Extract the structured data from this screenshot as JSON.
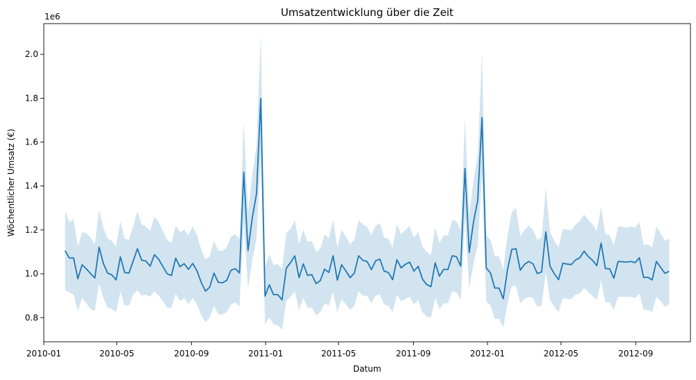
{
  "chart_data": {
    "type": "line",
    "title": "Umsatzentwicklung über die Zeit",
    "xlabel": "Datum",
    "ylabel": "Wöchentlicher Umsatz (€)",
    "y_offset_label": "1e6",
    "x_type": "date",
    "xlim": [
      "2010-01-01",
      "2012-11-30"
    ],
    "ylim": [
      0.69,
      2.14
    ],
    "y_ticks": [
      0.8,
      1.0,
      1.2,
      1.4,
      1.6,
      1.8,
      2.0
    ],
    "y_tick_labels": [
      "0.8",
      "1.0",
      "1.2",
      "1.4",
      "1.6",
      "1.8",
      "2.0"
    ],
    "x_ticks": [
      "2010-01-01",
      "2010-05-01",
      "2010-09-01",
      "2011-01-01",
      "2011-05-01",
      "2011-09-01",
      "2012-01-01",
      "2012-05-01",
      "2012-09-01"
    ],
    "x_tick_labels": [
      "2010-01",
      "2010-05",
      "2010-09",
      "2011-01",
      "2011-05",
      "2011-09",
      "2012-01",
      "2012-05",
      "2012-09"
    ],
    "grid": false,
    "legend": "none",
    "colors": {
      "line": "#1f77b4",
      "band": "#1f77b4",
      "axes": "#000000",
      "background": "#ffffff"
    },
    "band_opacity": 0.2,
    "x": [
      "2010-02-05",
      "2010-02-12",
      "2010-02-19",
      "2010-02-26",
      "2010-03-05",
      "2010-03-12",
      "2010-03-19",
      "2010-03-26",
      "2010-04-02",
      "2010-04-09",
      "2010-04-16",
      "2010-04-23",
      "2010-04-30",
      "2010-05-07",
      "2010-05-14",
      "2010-05-21",
      "2010-05-28",
      "2010-06-04",
      "2010-06-11",
      "2010-06-18",
      "2010-06-25",
      "2010-07-02",
      "2010-07-09",
      "2010-07-16",
      "2010-07-23",
      "2010-07-30",
      "2010-08-06",
      "2010-08-13",
      "2010-08-20",
      "2010-08-27",
      "2010-09-03",
      "2010-09-10",
      "2010-09-17",
      "2010-09-24",
      "2010-10-01",
      "2010-10-08",
      "2010-10-15",
      "2010-10-22",
      "2010-10-29",
      "2010-11-05",
      "2010-11-12",
      "2010-11-19",
      "2010-11-26",
      "2010-12-03",
      "2010-12-10",
      "2010-12-17",
      "2010-12-24",
      "2010-12-31",
      "2011-01-07",
      "2011-01-14",
      "2011-01-21",
      "2011-01-28",
      "2011-02-04",
      "2011-02-11",
      "2011-02-18",
      "2011-02-25",
      "2011-03-04",
      "2011-03-11",
      "2011-03-18",
      "2011-03-25",
      "2011-04-01",
      "2011-04-08",
      "2011-04-15",
      "2011-04-22",
      "2011-04-29",
      "2011-05-06",
      "2011-05-13",
      "2011-05-20",
      "2011-05-27",
      "2011-06-03",
      "2011-06-10",
      "2011-06-17",
      "2011-06-24",
      "2011-07-01",
      "2011-07-08",
      "2011-07-15",
      "2011-07-22",
      "2011-07-29",
      "2011-08-05",
      "2011-08-12",
      "2011-08-19",
      "2011-08-26",
      "2011-09-02",
      "2011-09-09",
      "2011-09-16",
      "2011-09-23",
      "2011-09-30",
      "2011-10-07",
      "2011-10-14",
      "2011-10-21",
      "2011-10-28",
      "2011-11-04",
      "2011-11-11",
      "2011-11-18",
      "2011-11-25",
      "2011-12-02",
      "2011-12-09",
      "2011-12-16",
      "2011-12-23",
      "2011-12-30",
      "2012-01-06",
      "2012-01-13",
      "2012-01-20",
      "2012-01-27",
      "2012-02-03",
      "2012-02-10",
      "2012-02-17",
      "2012-02-24",
      "2012-03-02",
      "2012-03-09",
      "2012-03-16",
      "2012-03-23",
      "2012-03-30",
      "2012-04-06",
      "2012-04-13",
      "2012-04-20",
      "2012-04-27",
      "2012-05-04",
      "2012-05-11",
      "2012-05-18",
      "2012-05-25",
      "2012-06-01",
      "2012-06-08",
      "2012-06-15",
      "2012-06-22",
      "2012-06-29",
      "2012-07-06",
      "2012-07-13",
      "2012-07-20",
      "2012-07-27",
      "2012-08-03",
      "2012-08-10",
      "2012-08-17",
      "2012-08-24",
      "2012-08-31",
      "2012-09-07",
      "2012-09-14",
      "2012-09-21",
      "2012-09-28",
      "2012-10-05",
      "2012-10-12",
      "2012-10-19",
      "2012-10-26"
    ],
    "series": [
      {
        "values": [
          1.105,
          1.072,
          1.072,
          0.977,
          1.041,
          1.022,
          1.001,
          0.981,
          1.121,
          1.047,
          1.003,
          0.995,
          0.972,
          1.077,
          1.006,
          1.003,
          1.057,
          1.114,
          1.062,
          1.058,
          1.034,
          1.087,
          1.066,
          1.033,
          1.0,
          0.992,
          1.071,
          1.032,
          1.046,
          1.02,
          1.047,
          1.014,
          0.961,
          0.921,
          0.939,
          1.003,
          0.961,
          0.959,
          0.97,
          1.016,
          1.023,
          1.004,
          1.463,
          1.106,
          1.253,
          1.366,
          1.799,
          0.898,
          0.95,
          0.905,
          0.905,
          0.881,
          1.025,
          1.051,
          1.082,
          0.982,
          1.045,
          0.993,
          0.996,
          0.955,
          0.969,
          1.021,
          1.006,
          1.082,
          0.971,
          1.041,
          1.013,
          0.982,
          1.003,
          1.082,
          1.061,
          1.056,
          1.019,
          1.059,
          1.067,
          1.012,
          1.006,
          0.973,
          1.064,
          1.027,
          1.043,
          1.053,
          1.012,
          1.034,
          0.976,
          0.951,
          0.941,
          1.05,
          0.989,
          1.02,
          1.02,
          1.082,
          1.078,
          1.035,
          1.48,
          1.097,
          1.235,
          1.335,
          1.712,
          1.026,
          1.004,
          0.935,
          0.935,
          0.886,
          1.019,
          1.111,
          1.114,
          1.016,
          1.043,
          1.056,
          1.045,
          1.001,
          1.008,
          1.191,
          1.034,
          1.0,
          0.973,
          1.048,
          1.044,
          1.042,
          1.063,
          1.073,
          1.103,
          1.078,
          1.061,
          1.037,
          1.14,
          1.024,
          1.023,
          0.98,
          1.056,
          1.055,
          1.053,
          1.056,
          1.051,
          1.073,
          0.983,
          0.984,
          0.972,
          1.056,
          1.029,
          1.002,
          1.011
        ],
        "lower": [
          0.925,
          0.915,
          0.905,
          0.83,
          0.89,
          0.865,
          0.84,
          0.83,
          0.955,
          0.89,
          0.845,
          0.84,
          0.825,
          0.92,
          0.855,
          0.855,
          0.905,
          0.925,
          0.9,
          0.905,
          0.895,
          0.92,
          0.9,
          0.875,
          0.845,
          0.845,
          0.91,
          0.875,
          0.89,
          0.86,
          0.89,
          0.86,
          0.81,
          0.78,
          0.8,
          0.855,
          0.815,
          0.815,
          0.825,
          0.86,
          0.87,
          0.85,
          1.24,
          0.93,
          1.06,
          1.16,
          1.53,
          0.77,
          0.8,
          0.77,
          0.765,
          0.745,
          0.875,
          0.895,
          0.92,
          0.835,
          0.89,
          0.845,
          0.845,
          0.81,
          0.825,
          0.865,
          0.855,
          0.92,
          0.825,
          0.885,
          0.86,
          0.835,
          0.855,
          0.92,
          0.9,
          0.9,
          0.865,
          0.9,
          0.905,
          0.86,
          0.855,
          0.825,
          0.905,
          0.875,
          0.885,
          0.895,
          0.86,
          0.88,
          0.825,
          0.805,
          0.8,
          0.89,
          0.84,
          0.865,
          0.865,
          0.92,
          0.915,
          0.88,
          1.255,
          0.93,
          1.045,
          1.13,
          1.45,
          0.875,
          0.855,
          0.795,
          0.795,
          0.755,
          0.865,
          0.945,
          0.945,
          0.865,
          0.885,
          0.895,
          0.89,
          0.85,
          0.855,
          1.01,
          0.88,
          0.85,
          0.825,
          0.89,
          0.885,
          0.885,
          0.905,
          0.91,
          0.935,
          0.915,
          0.9,
          0.88,
          0.97,
          0.87,
          0.87,
          0.835,
          0.895,
          0.895,
          0.895,
          0.895,
          0.89,
          0.91,
          0.835,
          0.835,
          0.825,
          0.895,
          0.875,
          0.85,
          0.86
        ],
        "upper": [
          1.285,
          1.235,
          1.25,
          1.125,
          1.19,
          1.185,
          1.165,
          1.135,
          1.29,
          1.21,
          1.16,
          1.15,
          1.125,
          1.24,
          1.16,
          1.155,
          1.215,
          1.285,
          1.225,
          1.215,
          1.195,
          1.26,
          1.235,
          1.195,
          1.155,
          1.14,
          1.22,
          1.19,
          1.2,
          1.175,
          1.215,
          1.175,
          1.11,
          1.065,
          1.08,
          1.15,
          1.105,
          1.105,
          1.12,
          1.17,
          1.18,
          1.16,
          1.695,
          1.28,
          1.45,
          1.58,
          2.09,
          1.03,
          1.09,
          1.04,
          1.045,
          1.02,
          1.185,
          1.205,
          1.245,
          1.135,
          1.2,
          1.145,
          1.15,
          1.1,
          1.115,
          1.18,
          1.16,
          1.245,
          1.12,
          1.2,
          1.17,
          1.135,
          1.155,
          1.245,
          1.225,
          1.215,
          1.175,
          1.22,
          1.23,
          1.165,
          1.16,
          1.12,
          1.225,
          1.18,
          1.2,
          1.215,
          1.165,
          1.19,
          1.125,
          1.1,
          1.085,
          1.21,
          1.14,
          1.175,
          1.175,
          1.245,
          1.24,
          1.195,
          1.71,
          1.265,
          1.425,
          1.54,
          2.005,
          1.175,
          1.155,
          1.08,
          1.08,
          1.02,
          1.175,
          1.28,
          1.3,
          1.17,
          1.2,
          1.22,
          1.2,
          1.155,
          1.165,
          1.39,
          1.19,
          1.15,
          1.12,
          1.205,
          1.2,
          1.2,
          1.225,
          1.24,
          1.27,
          1.245,
          1.225,
          1.195,
          1.305,
          1.18,
          1.175,
          1.13,
          1.215,
          1.215,
          1.21,
          1.215,
          1.21,
          1.235,
          1.13,
          1.135,
          1.12,
          1.215,
          1.185,
          1.15,
          1.16
        ]
      }
    ]
  }
}
